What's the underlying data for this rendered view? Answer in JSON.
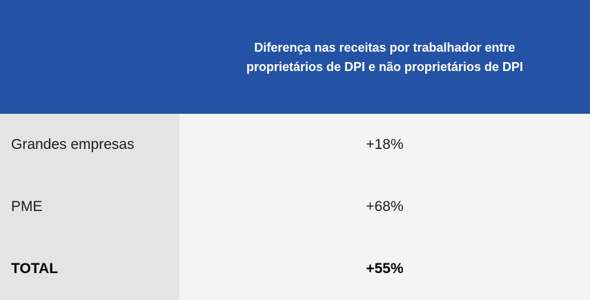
{
  "header": {
    "title": "Diferença nas receitas por trabalhador entre proprietários de DPI e não proprietários de DPI",
    "title_lines": {
      "line1": "Diferença nas receitas por trabalhador entre",
      "line2": "proprietários de DPI e não proprietários de DPI"
    },
    "bg_color": "#2453a5",
    "text_color": "#ffffff"
  },
  "table": {
    "label_col_bg": "#e4e4e4",
    "value_col_bg": "#f4f4f4",
    "rows": [
      {
        "label": "Grandes empresas",
        "value": "+18%",
        "bold": false
      },
      {
        "label": "PME",
        "value": "+68%",
        "bold": false
      },
      {
        "label": "TOTAL",
        "value": "+55%",
        "bold": true
      }
    ]
  },
  "chart_data": {
    "type": "table",
    "title": "Diferença nas receitas por trabalhador entre proprietários de DPI e não proprietários de DPI",
    "categories": [
      "Grandes empresas",
      "PME",
      "TOTAL"
    ],
    "values": [
      "+18%",
      "+68%",
      "+55%"
    ],
    "values_numeric": [
      18,
      68,
      55
    ],
    "unit": "%",
    "legend_position": "none",
    "grid": false
  }
}
